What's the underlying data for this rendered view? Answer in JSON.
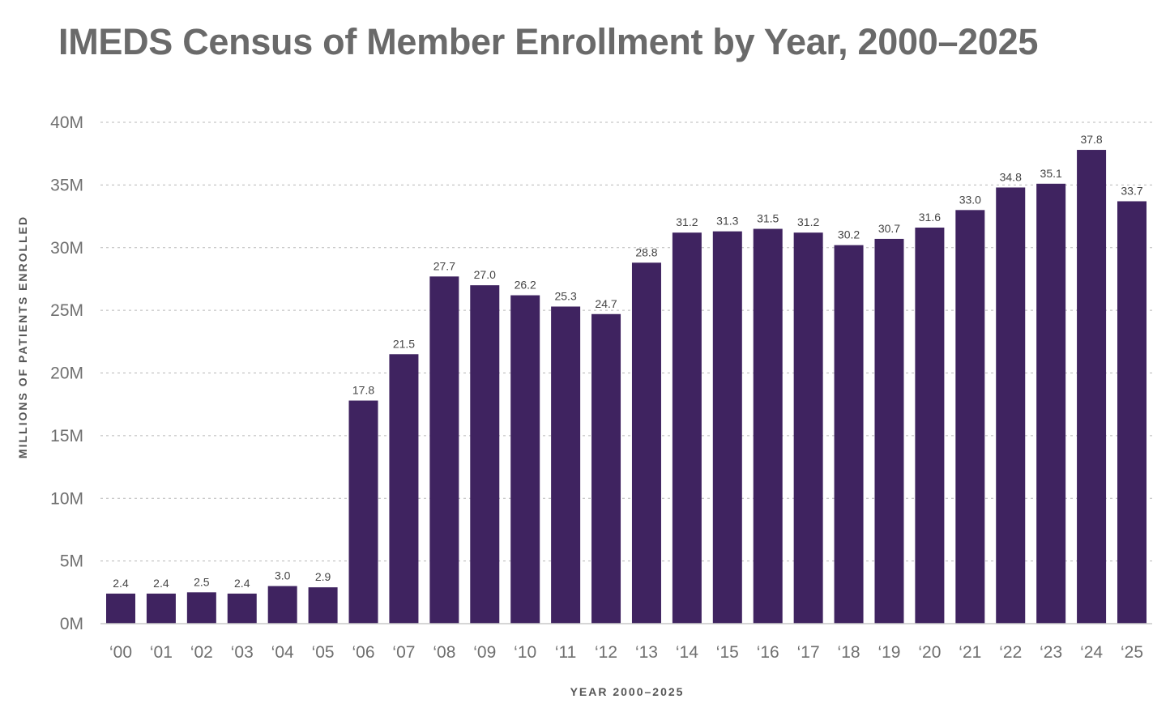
{
  "chart_data": {
    "type": "bar",
    "title": "IMEDS Census of Member Enrollment by Year, 2000–2025",
    "xlabel": "YEAR 2000–2025",
    "ylabel": "MILLIONS OF PATIENTS ENROLLED",
    "categories": [
      "‘00",
      "‘01",
      "‘02",
      "‘03",
      "‘04",
      "‘05",
      "‘06",
      "‘07",
      "‘08",
      "‘09",
      "‘10",
      "‘11",
      "‘12",
      "‘13",
      "‘14",
      "‘15",
      "‘16",
      "‘17",
      "‘18",
      "‘19",
      "‘20",
      "‘21",
      "‘22",
      "‘23",
      "‘24",
      "‘25"
    ],
    "values": [
      2.4,
      2.4,
      2.5,
      2.4,
      3.0,
      2.9,
      17.8,
      21.5,
      27.7,
      27.0,
      26.2,
      25.3,
      24.7,
      28.8,
      31.2,
      31.3,
      31.5,
      31.2,
      30.2,
      30.7,
      31.6,
      33.0,
      34.8,
      35.1,
      37.8,
      33.7
    ],
    "data_labels": [
      "2.4",
      "2.4",
      "2.5",
      "2.4",
      "3.0",
      "2.9",
      "17.8",
      "21.5",
      "27.7",
      "27.0",
      "26.2",
      "25.3",
      "24.7",
      "28.8",
      "31.2",
      "31.3",
      "31.5",
      "31.2",
      "30.2",
      "30.7",
      "31.6",
      "33.0",
      "34.8",
      "35.1",
      "37.8",
      "33.7"
    ],
    "y_ticks": [
      0,
      5,
      10,
      15,
      20,
      25,
      30,
      35,
      40
    ],
    "y_tick_labels": [
      "0M",
      "5M",
      "10M",
      "15M",
      "20M",
      "25M",
      "30M",
      "35M",
      "40M"
    ],
    "ylim": [
      0,
      40
    ],
    "grid": true,
    "legend": "none",
    "bar_color": "#3f2360"
  }
}
